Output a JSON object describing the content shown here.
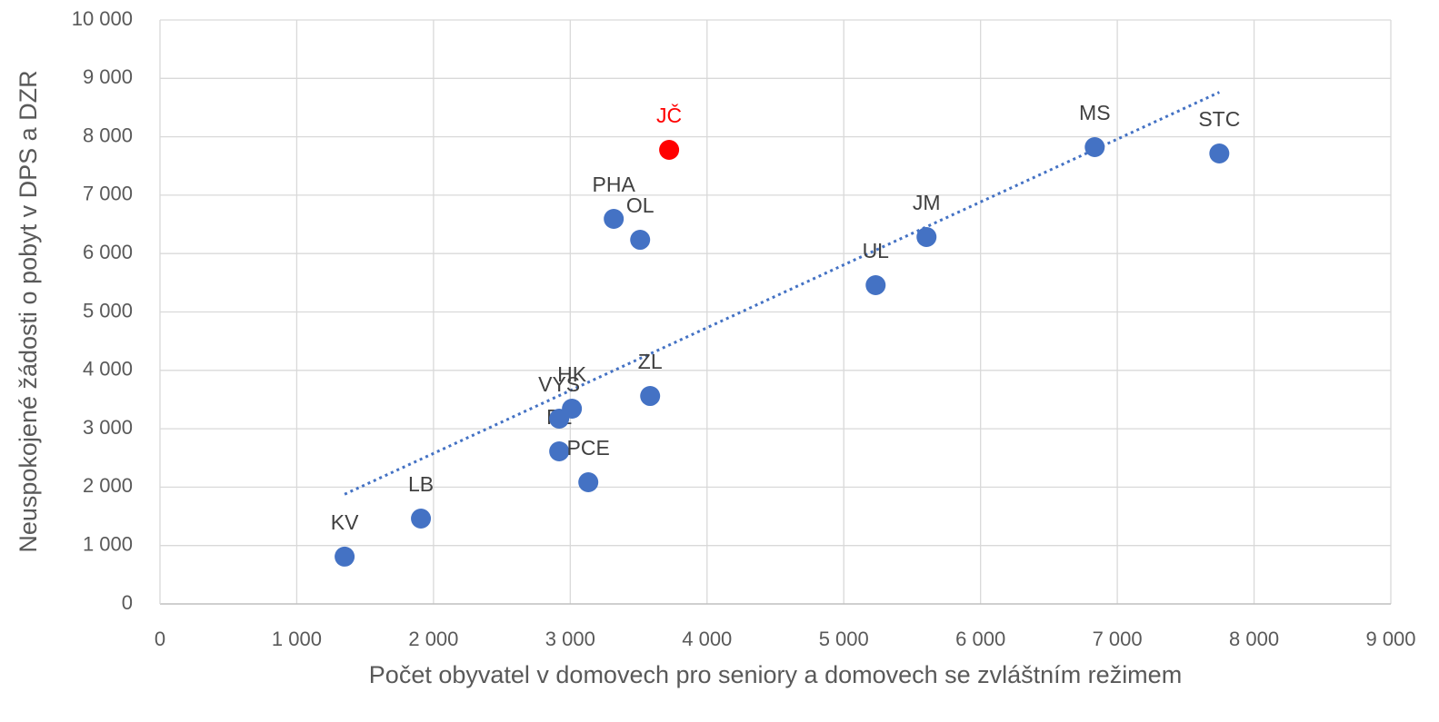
{
  "chart_data": {
    "type": "scatter",
    "x_label": "Počet obyvatel v domovech pro seniory a domovech se zvláštním režimem",
    "y_label": "Neuspokojené žádosti o pobyt v DPS a DZR",
    "points": [
      {
        "label": "KV",
        "x": 1350,
        "y": 810,
        "color": "#4472c4",
        "label_color": "#404040"
      },
      {
        "label": "LB",
        "x": 1908,
        "y": 1462,
        "color": "#4472c4",
        "label_color": "#404040"
      },
      {
        "label": "PL",
        "x": 2919,
        "y": 2613,
        "color": "#4472c4",
        "label_color": "#404040"
      },
      {
        "label": "VYS",
        "x": 2919,
        "y": 3173,
        "color": "#4472c4",
        "label_color": "#404040"
      },
      {
        "label": "HK",
        "x": 3012,
        "y": 3344,
        "color": "#4472c4",
        "label_color": "#404040"
      },
      {
        "label": "PCE",
        "x": 3132,
        "y": 2084,
        "color": "#4472c4",
        "label_color": "#404040"
      },
      {
        "label": "ZL",
        "x": 3584,
        "y": 3561,
        "color": "#4472c4",
        "label_color": "#404040"
      },
      {
        "label": "PHA",
        "x": 3318,
        "y": 6594,
        "color": "#4472c4",
        "label_color": "#404040"
      },
      {
        "label": "OL",
        "x": 3511,
        "y": 6236,
        "color": "#4472c4",
        "label_color": "#404040"
      },
      {
        "label": "JČ",
        "x": 3723,
        "y": 7776,
        "color": "#ff0000",
        "label_color": "#ff0000"
      },
      {
        "label": "UL",
        "x": 5233,
        "y": 5459,
        "color": "#4472c4",
        "label_color": "#404040"
      },
      {
        "label": "JM",
        "x": 5605,
        "y": 6283,
        "color": "#4472c4",
        "label_color": "#404040"
      },
      {
        "label": "MS",
        "x": 6835,
        "y": 7823,
        "color": "#4472c4",
        "label_color": "#404040"
      },
      {
        "label": "STC",
        "x": 7746,
        "y": 7714,
        "color": "#4472c4",
        "label_color": "#404040"
      }
    ],
    "trendline": {
      "type": "linear",
      "color": "#4472c4",
      "style": "dotted"
    },
    "xlim": [
      0,
      9000
    ],
    "xticks": [
      0,
      {
        "value": 1000,
        "label": "1 000"
      },
      {
        "value": 2000,
        "label": "2 000"
      },
      {
        "value": 3000,
        "label": "3 000"
      },
      {
        "value": 4000,
        "label": "4 000"
      },
      {
        "value": 5000,
        "label": "5 000"
      },
      {
        "value": 6000,
        "label": "6 000"
      },
      {
        "value": 7000,
        "label": "7 000"
      },
      {
        "value": 8000,
        "label": "8 000"
      },
      {
        "value": 9000,
        "label": "9 000"
      }
    ],
    "ylim": [
      0,
      10000
    ],
    "yticks": [
      0,
      {
        "value": 1000,
        "label": "1 000"
      },
      {
        "value": 2000,
        "label": "2 000"
      },
      {
        "value": 3000,
        "label": "3 000"
      },
      {
        "value": 4000,
        "label": "4 000"
      },
      {
        "value": 5000,
        "label": "5 000"
      },
      {
        "value": 6000,
        "label": "6 000"
      },
      {
        "value": 7000,
        "label": "7 000"
      },
      {
        "value": 8000,
        "label": "8 000"
      },
      {
        "value": 9000,
        "label": "9 000"
      },
      {
        "value": 10000,
        "label": "10 000"
      }
    ],
    "grid": true
  }
}
